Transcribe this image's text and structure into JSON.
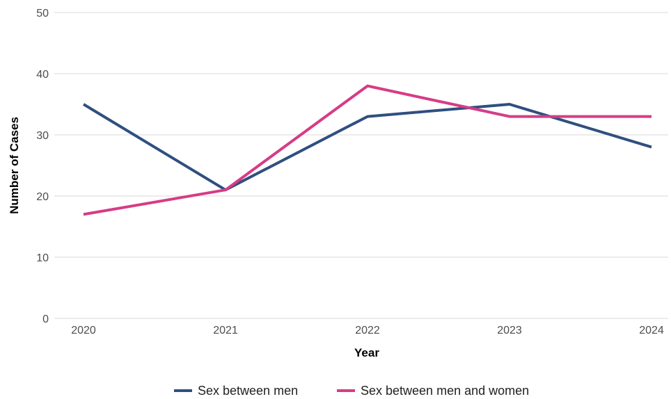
{
  "chart_data": {
    "type": "line",
    "title": "",
    "xlabel": "Year",
    "ylabel": "Number of Cases",
    "x": [
      "2020",
      "2021",
      "2022",
      "2023",
      "2024"
    ],
    "ylim": [
      0,
      50
    ],
    "yticks": [
      "0",
      "10",
      "20",
      "30",
      "40",
      "50"
    ],
    "grid": "horizontal",
    "legend_position": "bottom",
    "series": [
      {
        "name": "Sex between men",
        "color": "#2f4f7f",
        "values": [
          35,
          21,
          33,
          35,
          28
        ]
      },
      {
        "name": "Sex between men and women",
        "color": "#d63c85",
        "values": [
          17,
          21,
          38,
          33,
          33
        ]
      }
    ]
  }
}
